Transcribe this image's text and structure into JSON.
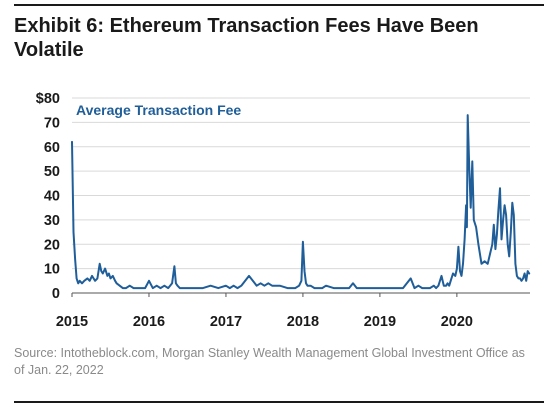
{
  "title": "Exhibit 6: Ethereum Transaction Fees Have Been Volatile",
  "source": "Source: Intotheblock.com, Morgan Stanley Wealth Management Global Investment Office as of Jan. 22, 2022",
  "colors": {
    "series": "#1f5e99",
    "text": "#1a1a1a",
    "grid": "#d9d9d9",
    "axis": "#555555",
    "source": "#8a8a8a"
  },
  "chart_data": {
    "type": "line",
    "title": "",
    "xlabel": "",
    "ylabel": "",
    "xlim": [
      2015.0,
      2020.95
    ],
    "ylim": [
      0,
      80
    ],
    "x_ticks": [
      {
        "value": 2015,
        "label": "2015"
      },
      {
        "value": 2016,
        "label": "2016"
      },
      {
        "value": 2017,
        "label": "2017"
      },
      {
        "value": 2018,
        "label": "2018"
      },
      {
        "value": 2019,
        "label": "2019"
      },
      {
        "value": 2020,
        "label": "2020"
      }
    ],
    "y_ticks": [
      {
        "value": 0,
        "label": "0"
      },
      {
        "value": 10,
        "label": "10"
      },
      {
        "value": 20,
        "label": "20"
      },
      {
        "value": 30,
        "label": "30"
      },
      {
        "value": 40,
        "label": "40"
      },
      {
        "value": 50,
        "label": "50"
      },
      {
        "value": 60,
        "label": "60"
      },
      {
        "value": 70,
        "label": "70"
      },
      {
        "value": 80,
        "label": "$80"
      }
    ],
    "grid": "horizontal",
    "series": [
      {
        "name": "Average Transaction Fee",
        "x": [
          2015.0,
          2015.02,
          2015.04,
          2015.06,
          2015.08,
          2015.1,
          2015.13,
          2015.16,
          2015.2,
          2015.23,
          2015.26,
          2015.3,
          2015.33,
          2015.36,
          2015.38,
          2015.4,
          2015.43,
          2015.46,
          2015.48,
          2015.5,
          2015.53,
          2015.56,
          2015.58,
          2015.62,
          2015.66,
          2015.7,
          2015.75,
          2015.8,
          2015.85,
          2015.9,
          2015.95,
          2016.0,
          2016.05,
          2016.1,
          2016.15,
          2016.2,
          2016.25,
          2016.3,
          2016.33,
          2016.35,
          2016.37,
          2016.4,
          2016.5,
          2016.6,
          2016.7,
          2016.8,
          2016.9,
          2017.0,
          2017.05,
          2017.1,
          2017.15,
          2017.2,
          2017.3,
          2017.4,
          2017.45,
          2017.5,
          2017.55,
          2017.6,
          2017.7,
          2017.8,
          2017.9,
          2017.95,
          2017.98,
          2018.0,
          2018.02,
          2018.04,
          2018.06,
          2018.1,
          2018.15,
          2018.2,
          2018.25,
          2018.3,
          2018.4,
          2018.5,
          2018.6,
          2018.65,
          2018.7,
          2018.8,
          2018.9,
          2019.0,
          2019.05,
          2019.1,
          2019.15,
          2019.2,
          2019.3,
          2019.4,
          2019.45,
          2019.5,
          2019.55,
          2019.6,
          2019.65,
          2019.7,
          2019.73,
          2019.76,
          2019.8,
          2019.83,
          2019.86,
          2019.88,
          2019.9,
          2019.92,
          2019.95,
          2019.98,
          2020.0,
          2020.02,
          2020.04,
          2020.06,
          2020.08,
          2020.1,
          2020.12,
          2020.13,
          2020.14,
          2020.16,
          2020.18,
          2020.2,
          2020.22,
          2020.25,
          2020.28,
          2020.32,
          2020.36,
          2020.4,
          2020.43,
          2020.46,
          2020.48,
          2020.5,
          2020.52,
          2020.54,
          2020.56,
          2020.58,
          2020.6,
          2020.62,
          2020.64,
          2020.66,
          2020.68,
          2020.7,
          2020.72,
          2020.74,
          2020.76,
          2020.78,
          2020.8,
          2020.82,
          2020.84,
          2020.86,
          2020.88,
          2020.9,
          2020.92,
          2020.94
        ],
        "y": [
          62,
          25,
          14,
          6,
          4,
          5,
          4,
          5,
          6,
          5,
          7,
          5,
          6,
          12,
          9,
          8,
          10,
          7,
          8,
          6,
          7,
          5,
          4,
          3,
          2,
          2,
          3,
          2,
          2,
          2,
          2,
          5,
          2,
          3,
          2,
          3,
          2,
          4,
          11,
          4,
          3,
          2,
          2,
          2,
          2,
          3,
          2,
          3,
          2,
          3,
          2,
          3,
          7,
          3,
          4,
          3,
          4,
          3,
          3,
          2,
          2,
          3,
          5,
          21,
          9,
          4,
          3,
          3,
          2,
          2,
          2,
          3,
          2,
          2,
          2,
          4,
          2,
          2,
          2,
          2,
          2,
          2,
          2,
          2,
          2,
          6,
          2,
          3,
          2,
          2,
          2,
          3,
          2,
          3,
          7,
          3,
          3,
          4,
          3,
          5,
          8,
          7,
          10,
          19,
          9,
          7,
          12,
          22,
          36,
          27,
          73,
          52,
          35,
          54,
          30,
          27,
          20,
          12,
          13,
          12,
          16,
          20,
          28,
          18,
          24,
          34,
          43,
          22,
          30,
          36,
          32,
          20,
          15,
          25,
          37,
          32,
          12,
          7,
          6,
          6,
          5,
          6,
          8,
          5,
          9,
          8
        ]
      }
    ]
  }
}
